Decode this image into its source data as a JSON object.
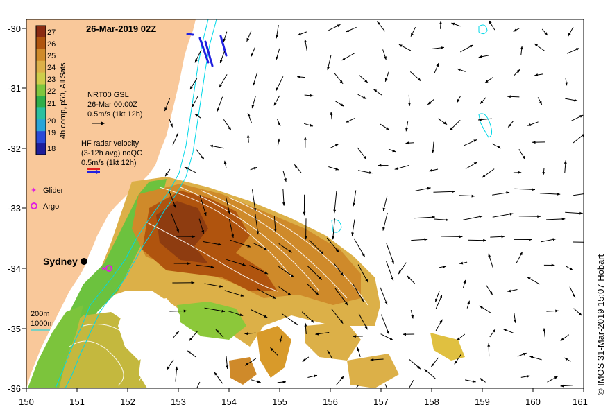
{
  "title": "26-Mar-2019 02Z",
  "credit": "© IMOS 31-Mar-2019 15:07 Hobart",
  "colorbar": {
    "label": "4h comp, p50, All Sats",
    "ticks": [
      "27",
      "26",
      "25",
      "24",
      "23",
      "22",
      "21",
      "20",
      "19",
      "18"
    ],
    "colors": [
      "#8a2a12",
      "#b0540e",
      "#cf8a2a",
      "#dcb048",
      "#cfcd4a",
      "#7ec63e",
      "#2fae4a",
      "#2ac0a0",
      "#2aa4d8",
      "#2a4ad8",
      "#1e1e9a"
    ]
  },
  "legend": {
    "gsl_line1": "NRT00 GSL",
    "gsl_line2": "26-Mar 00:00Z",
    "gsl_line3": "0.5m/s (1kt 12h)",
    "hf_line1": "HF radar velocity",
    "hf_line2": "(3-12h avg) noQC",
    "hf_line3": "0.5m/s (1kt 12h)",
    "glider": "Glider",
    "argo": "Argo",
    "contour200": "200m",
    "contour1000": "1000m"
  },
  "city": "Sydney",
  "axes": {
    "x_ticks": [
      "150",
      "151",
      "152",
      "153",
      "154",
      "155",
      "156",
      "157",
      "158",
      "159",
      "160",
      "161"
    ],
    "y_ticks": [
      "-30",
      "-31",
      "-32",
      "-33",
      "-34",
      "-35",
      "-36"
    ],
    "xlim": [
      150,
      161
    ],
    "ylim": [
      -36,
      -29.85
    ]
  },
  "colors": {
    "land": "#f9c89a",
    "ocean": "#ffffff",
    "isobath": "#00d8e8",
    "sst_contour": "#ffffff",
    "glider": "#e020e0",
    "argo": "#e020e0",
    "hf_radar_a": "#e02020",
    "hf_radar_b": "#2020e0"
  }
}
